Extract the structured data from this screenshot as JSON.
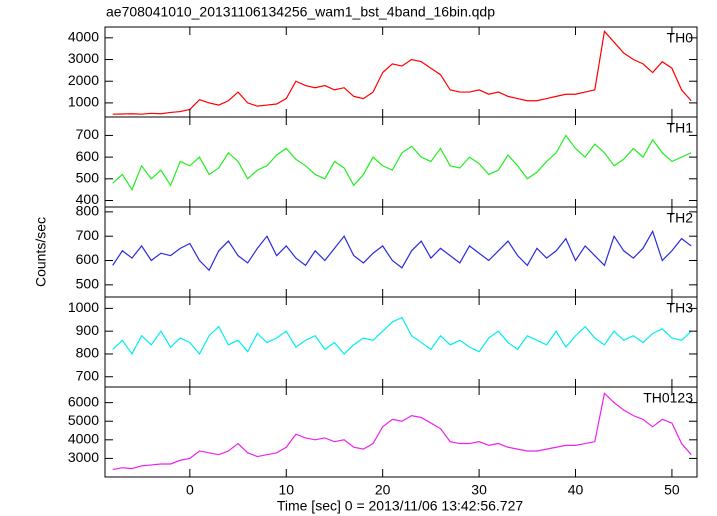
{
  "chart_data": {
    "type": "line",
    "title": "ae708041010_20131106134256_wam1_bst_4band_16bin.qdp",
    "xlabel": "Time [sec] 0 = 2013/11/06 13:42:56.727",
    "ylabel": "Counts/sec",
    "xlim": [
      -8.8,
      52.6
    ],
    "xticks": [
      0,
      10,
      20,
      30,
      40,
      50
    ],
    "x": [
      -8,
      -7,
      -6,
      -5,
      -4,
      -3,
      -2,
      -1,
      0,
      1,
      2,
      3,
      4,
      5,
      6,
      7,
      8,
      9,
      10,
      11,
      12,
      13,
      14,
      15,
      16,
      17,
      18,
      19,
      20,
      21,
      22,
      23,
      24,
      25,
      26,
      27,
      28,
      29,
      30,
      31,
      32,
      33,
      34,
      35,
      36,
      37,
      38,
      39,
      40,
      41,
      42,
      43,
      44,
      45,
      46,
      47,
      48,
      49,
      50,
      51,
      52
    ],
    "series": [
      {
        "name": "TH0",
        "color": "#ff0000",
        "ylim": [
          350,
          4500
        ],
        "yticks": [
          1000,
          2000,
          3000,
          4000
        ],
        "values": [
          480,
          490,
          500,
          480,
          520,
          500,
          560,
          600,
          700,
          1150,
          1000,
          900,
          1100,
          1500,
          1000,
          850,
          900,
          950,
          1200,
          2000,
          1800,
          1700,
          1800,
          1600,
          1700,
          1300,
          1200,
          1500,
          2400,
          2800,
          2700,
          3000,
          2900,
          2600,
          2300,
          1600,
          1500,
          1500,
          1600,
          1400,
          1500,
          1300,
          1200,
          1100,
          1100,
          1200,
          1300,
          1400,
          1400,
          1500,
          1600,
          4300,
          3800,
          3300,
          3000,
          2800,
          2400,
          2900,
          2600,
          1600,
          1100
        ]
      },
      {
        "name": "TH1",
        "color": "#22ee22",
        "ylim": [
          370,
          785
        ],
        "yticks": [
          400,
          500,
          600,
          700
        ],
        "values": [
          480,
          520,
          450,
          560,
          500,
          540,
          470,
          580,
          560,
          600,
          520,
          550,
          620,
          580,
          500,
          540,
          560,
          610,
          640,
          590,
          560,
          520,
          500,
          580,
          550,
          470,
          520,
          600,
          560,
          540,
          620,
          650,
          600,
          580,
          640,
          560,
          550,
          600,
          570,
          520,
          540,
          610,
          560,
          500,
          530,
          580,
          620,
          700,
          640,
          600,
          660,
          620,
          560,
          590,
          640,
          600,
          680,
          620,
          580,
          600,
          620
        ]
      },
      {
        "name": "TH2",
        "color": "#2a2ae0",
        "ylim": [
          450,
          820
        ],
        "yticks": [
          500,
          600,
          700,
          800
        ],
        "values": [
          580,
          640,
          610,
          660,
          600,
          630,
          620,
          650,
          670,
          600,
          560,
          640,
          680,
          620,
          590,
          650,
          700,
          620,
          660,
          610,
          580,
          640,
          600,
          650,
          700,
          620,
          590,
          630,
          660,
          600,
          570,
          640,
          680,
          610,
          650,
          620,
          590,
          660,
          630,
          600,
          640,
          680,
          620,
          580,
          650,
          610,
          640,
          690,
          600,
          660,
          620,
          580,
          700,
          640,
          610,
          650,
          720,
          600,
          640,
          690,
          660
        ]
      },
      {
        "name": "TH3",
        "color": "#00eeee",
        "ylim": [
          655,
          1050
        ],
        "yticks": [
          700,
          800,
          900,
          1000
        ],
        "values": [
          820,
          860,
          800,
          880,
          840,
          900,
          830,
          870,
          850,
          800,
          880,
          920,
          840,
          860,
          810,
          890,
          850,
          870,
          900,
          830,
          860,
          880,
          820,
          850,
          800,
          840,
          870,
          860,
          900,
          940,
          960,
          880,
          850,
          820,
          880,
          840,
          860,
          830,
          810,
          870,
          900,
          850,
          820,
          880,
          860,
          840,
          900,
          830,
          880,
          920,
          870,
          840,
          900,
          860,
          880,
          850,
          890,
          910,
          870,
          860,
          900
        ]
      },
      {
        "name": "TH0123",
        "color": "#ee22ee",
        "ylim": [
          2000,
          6840
        ],
        "yticks": [
          3000,
          4000,
          5000,
          6000
        ],
        "values": [
          2400,
          2500,
          2450,
          2600,
          2650,
          2700,
          2700,
          2900,
          3000,
          3400,
          3300,
          3200,
          3400,
          3800,
          3300,
          3100,
          3200,
          3300,
          3600,
          4300,
          4100,
          4000,
          4100,
          3900,
          4000,
          3600,
          3500,
          3800,
          4700,
          5100,
          5000,
          5300,
          5200,
          4900,
          4600,
          3900,
          3800,
          3800,
          3900,
          3700,
          3800,
          3600,
          3500,
          3400,
          3400,
          3500,
          3600,
          3700,
          3700,
          3800,
          3900,
          6500,
          6000,
          5600,
          5300,
          5100,
          4700,
          5100,
          4900,
          3800,
          3200
        ]
      }
    ]
  }
}
